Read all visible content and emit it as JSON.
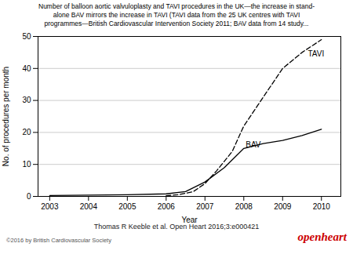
{
  "chart_data": {
    "type": "line",
    "title": "Number of balloon aortic valvuloplasty and TAVI procedures in the UK—the increase in stand-\nalone BAV mirrors the increase in TAVI (TAVI data from the 25 UK centres with TAVI\nprogrammes—British Cardiovascular Intervention Society 2011; BAV data from 14 study...",
    "xlabel": "Year",
    "ylabel": "No. of procedures per month",
    "xlim": [
      2002.7,
      2010.5
    ],
    "xticks": [
      2003,
      2004,
      2005,
      2006,
      2007,
      2008,
      2009,
      2010
    ],
    "ylim": [
      0,
      50
    ],
    "yticks": [
      0,
      10,
      20,
      30,
      40,
      50
    ],
    "grid": true,
    "series": [
      {
        "name": "BAV",
        "color": "#000000",
        "line_style": "solid",
        "x": [
          2003,
          2004,
          2005,
          2006,
          2006.5,
          2007,
          2007.5,
          2008,
          2008.5,
          2009,
          2009.5,
          2010
        ],
        "values": [
          0.3,
          0.4,
          0.5,
          0.8,
          1.5,
          4.5,
          9.0,
          15.0,
          16.5,
          17.5,
          19.0,
          21.0
        ]
      },
      {
        "name": "TAVI",
        "color": "#000000",
        "line_style": "dashed",
        "x": [
          2006,
          2006.3,
          2006.7,
          2007,
          2007.3,
          2007.7,
          2008,
          2008.5,
          2009,
          2009.5,
          2010
        ],
        "values": [
          0.2,
          0.5,
          1.5,
          4.0,
          8.0,
          14.0,
          22.0,
          31.0,
          40.0,
          45.0,
          49.0
        ]
      }
    ],
    "annotations": [
      {
        "text": "TAVI",
        "x": 2009.65,
        "y": 44.5
      },
      {
        "text": "BAV",
        "x": 2008.05,
        "y": 16.2
      }
    ],
    "caption": "Thomas R Keeble et al. Open Heart 2016;3:e000421",
    "footer": [
      {
        "text": "©2016 by British Cardiovascular Society"
      },
      {
        "text": "openheart",
        "color": "#cc0000"
      }
    ]
  }
}
